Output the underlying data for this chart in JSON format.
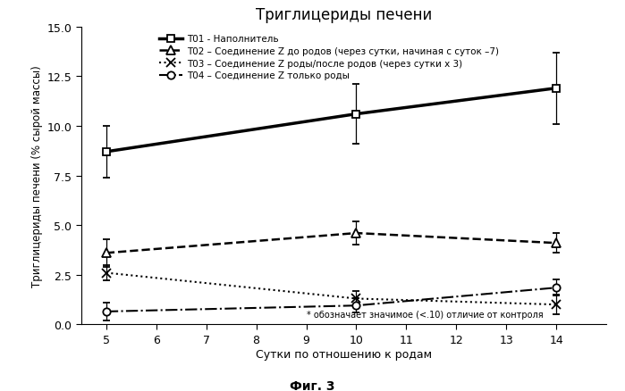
{
  "title": "Триглицериды печени",
  "xlabel": "Сутки по отношению к родам",
  "ylabel": "Триглицериды печени (% сырой массы)",
  "caption": "Фиг. 3",
  "annotation": "* обозначает значимое (<.10) отличие от контроля",
  "x": [
    5,
    10,
    14
  ],
  "T01": {
    "y": [
      8.7,
      10.6,
      11.9
    ],
    "yerr": [
      1.3,
      1.5,
      1.8
    ],
    "label": "T01 - Наполнитель",
    "linestyle": "-",
    "marker": "s",
    "linewidth": 2.5,
    "mfc": "white",
    "mec": "black",
    "ms": 6
  },
  "T02": {
    "y": [
      3.6,
      4.6,
      4.1
    ],
    "yerr": [
      0.7,
      0.6,
      0.5
    ],
    "label": "T02 – Соединение Z до родов (через сутки, начиная с суток –7)",
    "linestyle": "--",
    "marker": "^",
    "linewidth": 1.8,
    "mfc": "white",
    "mec": "black",
    "ms": 7
  },
  "T03": {
    "y": [
      2.6,
      1.3,
      1.0
    ],
    "yerr": [
      0.4,
      0.4,
      0.5
    ],
    "label": "T03 – Соединение Z роды/после родов (через сутки x 3)",
    "linestyle": ":",
    "marker": "x",
    "linewidth": 1.5,
    "mfc": "black",
    "mec": "black",
    "ms": 7
  },
  "T04": {
    "y": [
      0.65,
      0.95,
      1.85
    ],
    "yerr": [
      0.45,
      0.35,
      0.4
    ],
    "label": "T04 – Соединение Z только роды",
    "linestyle": "-.",
    "marker": "o",
    "linewidth": 1.5,
    "mfc": "white",
    "mec": "black",
    "ms": 6
  },
  "ylim": [
    0.0,
    15.0
  ],
  "xlim": [
    4.5,
    15.0
  ],
  "yticks": [
    0.0,
    2.5,
    5.0,
    7.5,
    10.0,
    12.5,
    15.0
  ],
  "xticks": [
    5,
    6,
    7,
    8,
    9,
    10,
    11,
    12,
    13,
    14
  ],
  "background_color": "#ffffff"
}
